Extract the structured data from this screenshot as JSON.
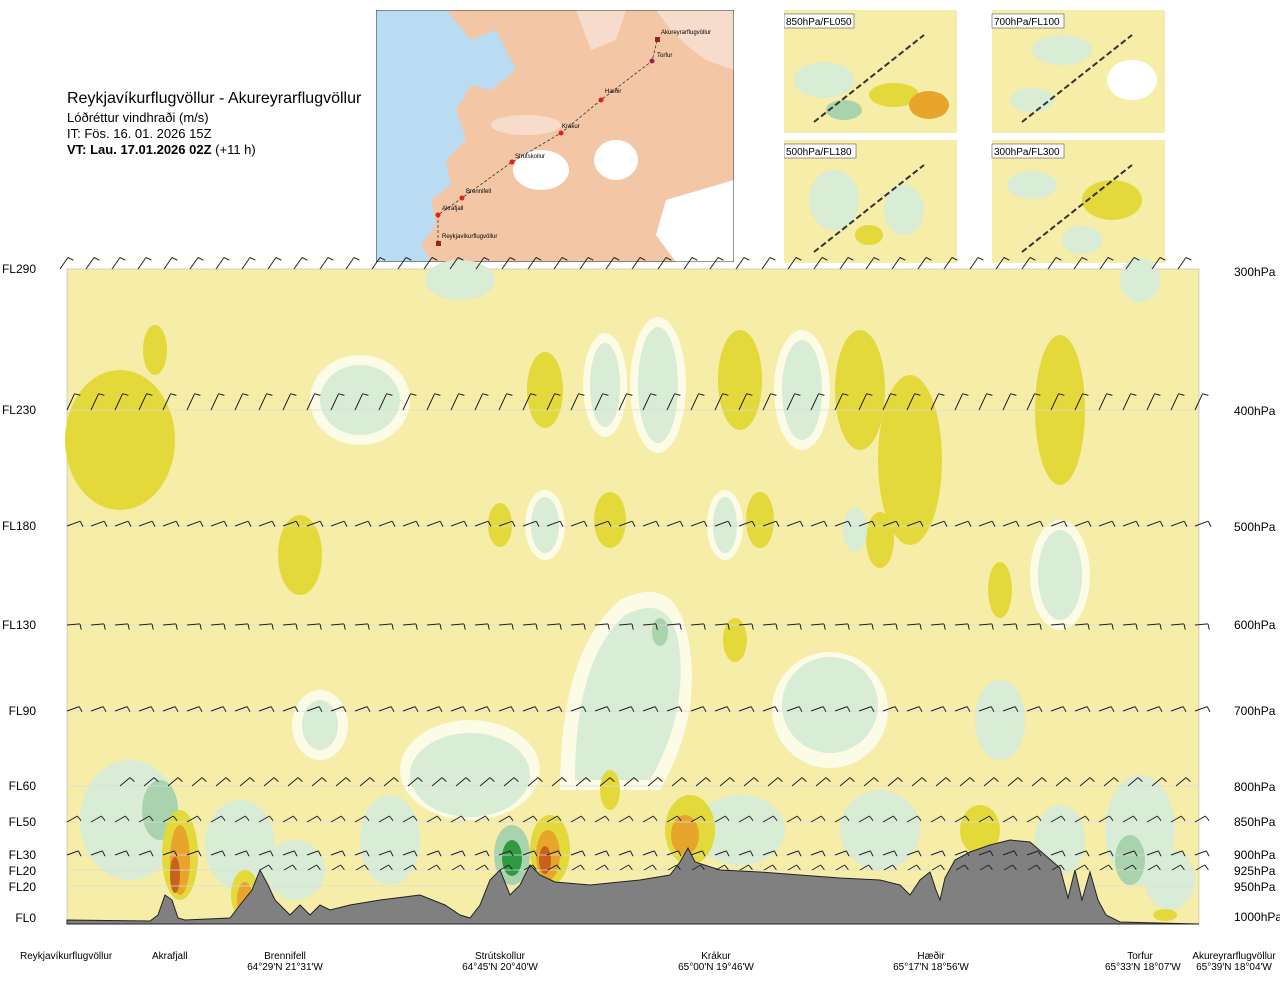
{
  "header": {
    "route_title": "Reykjavíkurflugvöllur - Akureyrarflugvöllur",
    "variable": "Lóðréttur vindhraði (m/s)",
    "issue_time": "IT: Fös. 16. 01. 2026 15Z",
    "valid_prefix": "VT: Lau. 17.01.2026 02Z",
    "valid_suffix": "(+11 h)"
  },
  "route_map": {
    "waypoints": [
      {
        "name": "Akureyrarflugvöllur",
        "type": "airport"
      },
      {
        "name": "Torfur",
        "type": "point"
      },
      {
        "name": "Hæðir",
        "type": "point"
      },
      {
        "name": "Krákur",
        "type": "point"
      },
      {
        "name": "Strútskollur",
        "type": "point"
      },
      {
        "name": "Brennifell",
        "type": "point"
      },
      {
        "name": "Akrafjall",
        "type": "point"
      },
      {
        "name": "Reykjavíkurflugvöllur",
        "type": "airport"
      }
    ]
  },
  "level_panels": [
    {
      "label": "850hPa/FL050"
    },
    {
      "label": "700hPa/FL100"
    },
    {
      "label": "500hPa/FL180"
    },
    {
      "label": "300hPa/FL300"
    }
  ],
  "levels": [
    {
      "fl": "FL290",
      "hpa": "300hPa"
    },
    {
      "fl": "FL230",
      "hpa": "400hPa"
    },
    {
      "fl": "FL180",
      "hpa": "500hPa"
    },
    {
      "fl": "FL130",
      "hpa": "600hPa"
    },
    {
      "fl": "FL90",
      "hpa": "700hPa"
    },
    {
      "fl": "FL60",
      "hpa": "800hPa"
    },
    {
      "fl": "FL50",
      "hpa": "850hPa"
    },
    {
      "fl": "FL30",
      "hpa": "900hPa"
    },
    {
      "fl": "FL20",
      "hpa": "925hPa"
    },
    {
      "fl": "FL20",
      "hpa": "950hPa"
    },
    {
      "fl": "FL0",
      "hpa": "1000hPa"
    }
  ],
  "bottom_labels": [
    {
      "name": "Reykjavíkurflugvöllur",
      "coord": ""
    },
    {
      "name": "Akrafjall",
      "coord": ""
    },
    {
      "name": "Brennifell",
      "coord": "64°29'N 21°31'W"
    },
    {
      "name": "Strútskollur",
      "coord": "64°45'N 20°40'W"
    },
    {
      "name": "Krákur",
      "coord": "65°00'N 19°46'W"
    },
    {
      "name": "Hæðir",
      "coord": "65°17'N 18°56'W"
    },
    {
      "name": "Torfur",
      "coord": "65°33'N 18°07'W"
    },
    {
      "name": "Akureyrarflugvöllur",
      "coord": "65°39'N 18°04'W"
    }
  ],
  "colors": {
    "background_field": "#f5eda8",
    "weak_down_yellow": "#e4d93a",
    "updraft_light": "#d8ecd6",
    "updraft_mid": "#a9d3ac",
    "updraft_strong": "#2f9a3f",
    "down_orange": "#e7a52b",
    "down_strong": "#c7621d",
    "terrain": "#808080",
    "sea": "#b9dcf2",
    "land": "#f3c7a6",
    "route_point": "#e0201b"
  }
}
